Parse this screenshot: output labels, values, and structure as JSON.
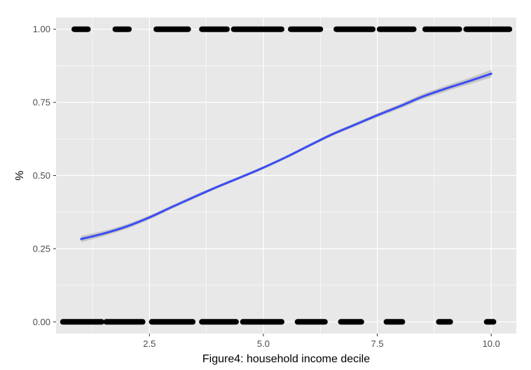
{
  "chart_data": {
    "type": "scatter",
    "title": "",
    "xlabel": "Figure4: household income decile",
    "ylabel": "%",
    "xlim": [
      0.45,
      10.55
    ],
    "ylim": [
      -0.04,
      1.04
    ],
    "x_ticks": [
      2.5,
      5.0,
      7.5,
      10.0
    ],
    "x_tick_labels": [
      "2.5",
      "5.0",
      "7.5",
      "10.0"
    ],
    "y_ticks": [
      0.0,
      0.25,
      0.5,
      0.75,
      1.0
    ],
    "y_tick_labels": [
      "0.00",
      "0.25",
      "0.50",
      "0.75",
      "1.00"
    ],
    "grid": true,
    "legend": "none",
    "colors": {
      "panel_background": "#e8e8e8",
      "grid": "#ffffff",
      "points": "#000000",
      "fit_line": "#3b4cf4",
      "confidence_band": "#c0c0c0"
    },
    "point_runs": [
      {
        "y": 1,
        "x_from": 0.85,
        "x_to": 1.15
      },
      {
        "y": 1,
        "x_from": 1.75,
        "x_to": 2.05
      },
      {
        "y": 1,
        "x_from": 2.65,
        "x_to": 3.35
      },
      {
        "y": 1,
        "x_from": 3.65,
        "x_to": 4.2
      },
      {
        "y": 1,
        "x_from": 4.35,
        "x_to": 5.4
      },
      {
        "y": 1,
        "x_from": 5.6,
        "x_to": 6.25
      },
      {
        "y": 1,
        "x_from": 6.6,
        "x_to": 7.4
      },
      {
        "y": 1,
        "x_from": 7.55,
        "x_to": 8.3
      },
      {
        "y": 1,
        "x_from": 8.55,
        "x_to": 9.3
      },
      {
        "y": 1,
        "x_from": 9.45,
        "x_to": 10.4
      },
      {
        "y": 0,
        "x_from": 0.6,
        "x_to": 1.45
      },
      {
        "y": 0,
        "x_from": 1.55,
        "x_to": 2.35
      },
      {
        "y": 0,
        "x_from": 2.55,
        "x_to": 3.45
      },
      {
        "y": 0,
        "x_from": 3.65,
        "x_to": 4.4
      },
      {
        "y": 0,
        "x_from": 4.55,
        "x_to": 5.4
      },
      {
        "y": 0,
        "x_from": 5.75,
        "x_to": 6.35
      },
      {
        "y": 0,
        "x_from": 6.7,
        "x_to": 7.15
      },
      {
        "y": 0,
        "x_from": 7.7,
        "x_to": 8.05
      },
      {
        "y": 0,
        "x_from": 8.85,
        "x_to": 9.1
      },
      {
        "y": 0,
        "x_from": 9.9,
        "x_to": 10.05
      }
    ],
    "series": [
      {
        "type": "line",
        "x": [
          1.0,
          1.5,
          2.0,
          2.5,
          3.0,
          3.5,
          4.0,
          4.5,
          5.0,
          5.5,
          6.0,
          6.5,
          7.0,
          7.5,
          8.0,
          8.5,
          9.0,
          9.5,
          10.0
        ],
        "y": [
          0.283,
          0.302,
          0.326,
          0.357,
          0.393,
          0.428,
          0.462,
          0.494,
          0.527,
          0.563,
          0.602,
          0.64,
          0.673,
          0.706,
          0.737,
          0.77,
          0.797,
          0.822,
          0.848
        ],
        "band_lower": [
          0.272,
          0.293,
          0.318,
          0.35,
          0.387,
          0.422,
          0.457,
          0.489,
          0.522,
          0.558,
          0.597,
          0.634,
          0.667,
          0.699,
          0.729,
          0.761,
          0.787,
          0.811,
          0.835
        ],
        "band_upper": [
          0.294,
          0.311,
          0.334,
          0.364,
          0.399,
          0.434,
          0.467,
          0.499,
          0.532,
          0.568,
          0.607,
          0.646,
          0.679,
          0.713,
          0.745,
          0.779,
          0.807,
          0.833,
          0.861
        ]
      }
    ]
  }
}
